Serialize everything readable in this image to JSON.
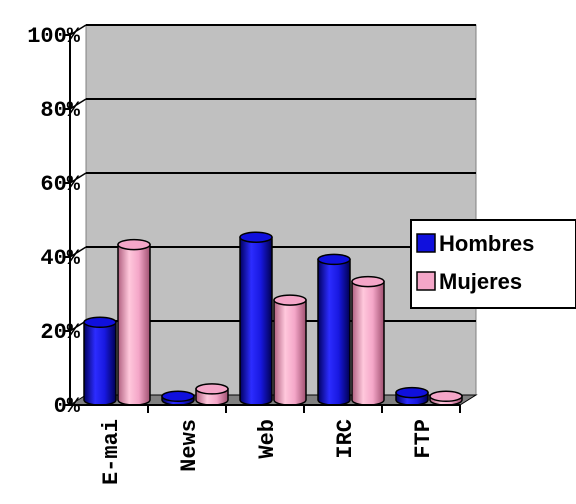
{
  "chart_data": {
    "type": "bar",
    "style": "3d-cylinder",
    "categories": [
      "E-mai",
      "News",
      "Web",
      "IRC",
      "FTP"
    ],
    "series": [
      {
        "name": "Hombres",
        "color": "#1010dd",
        "values": [
          21,
          1,
          44,
          38,
          2
        ]
      },
      {
        "name": "Mujeres",
        "color": "#f4a6c8",
        "values": [
          42,
          3,
          27,
          32,
          1
        ]
      }
    ],
    "ylim": [
      0,
      100
    ],
    "yticks": [
      "0%",
      "20%",
      "40%",
      "60%",
      "80%",
      "100%"
    ],
    "grid": true,
    "legend_position": "right",
    "colors": {
      "plot_wall": "#c0c0c0",
      "floor": "#808080"
    }
  }
}
